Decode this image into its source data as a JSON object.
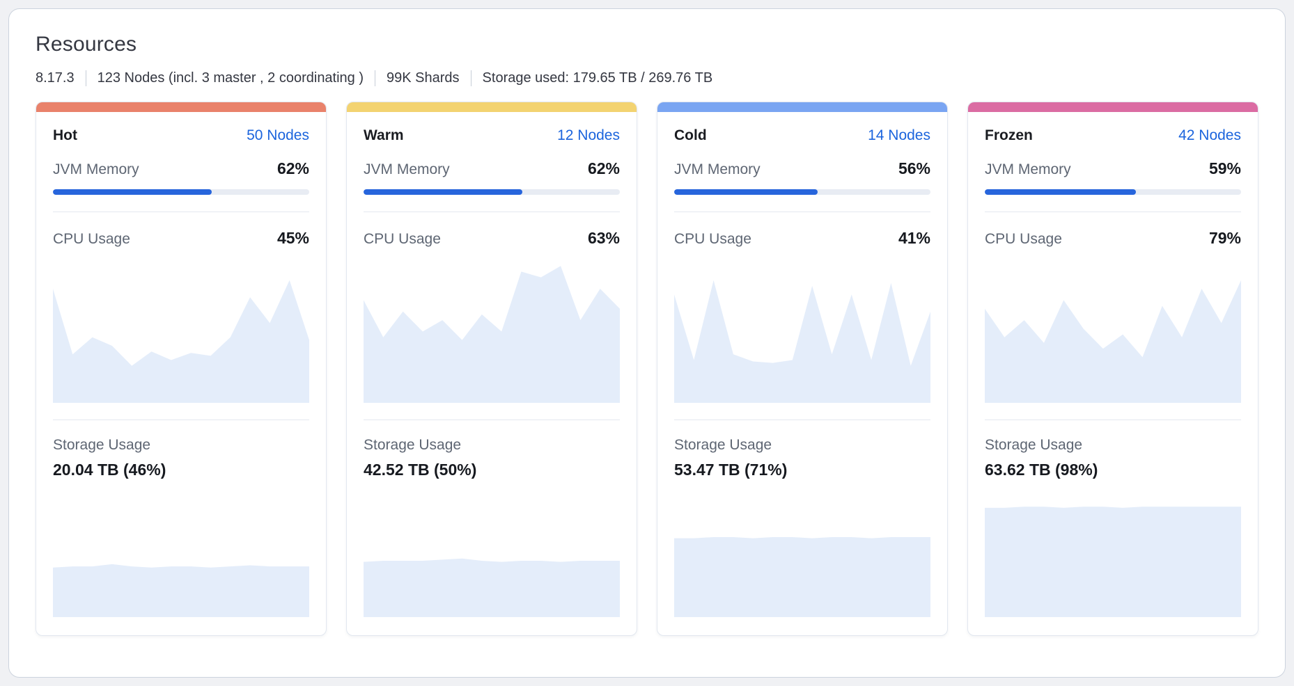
{
  "panel": {
    "title": "Resources",
    "meta": [
      "8.17.3",
      "123 Nodes (incl. 3 master , 2 coordinating )",
      "99K Shards",
      "Storage used: 179.65 TB / 269.76 TB"
    ]
  },
  "labels": {
    "jvm_memory": "JVM Memory",
    "cpu_usage": "CPU Usage",
    "storage_usage": "Storage Usage"
  },
  "colors": {
    "link_blue": "#1b64dd",
    "progress_fill": "#2765dc",
    "chart_fill": "#e4edfa",
    "hot_accent": "#e9826b",
    "warm_accent": "#f3d371",
    "cold_accent": "#7aa5f2",
    "frozen_accent": "#db6ca3"
  },
  "tiers": [
    {
      "name": "Hot",
      "nodes": "50 Nodes",
      "accent": "#e9826b",
      "jvm_memory": "62%",
      "jvm_value": 62,
      "cpu_usage": "45%",
      "storage_usage": "20.04 TB (46%)",
      "cpu_series": [
        80,
        34,
        46,
        40,
        26,
        36,
        30,
        35,
        33,
        46,
        74,
        56,
        86,
        44
      ],
      "storage_series": [
        44,
        45,
        45,
        47,
        45,
        44,
        45,
        45,
        44,
        45,
        46,
        45,
        45,
        45
      ]
    },
    {
      "name": "Warm",
      "nodes": "12 Nodes",
      "accent": "#f3d371",
      "jvm_memory": "62%",
      "jvm_value": 62,
      "cpu_usage": "63%",
      "storage_usage": "42.52 TB (50%)",
      "cpu_series": [
        72,
        46,
        64,
        50,
        58,
        44,
        62,
        50,
        92,
        88,
        96,
        58,
        80,
        66
      ],
      "storage_series": [
        49,
        50,
        50,
        50,
        51,
        52,
        50,
        49,
        50,
        50,
        49,
        50,
        50,
        50
      ]
    },
    {
      "name": "Cold",
      "nodes": "14 Nodes",
      "accent": "#7aa5f2",
      "jvm_memory": "56%",
      "jvm_value": 56,
      "cpu_usage": "41%",
      "storage_usage": "53.47 TB (71%)",
      "cpu_series": [
        76,
        30,
        86,
        34,
        29,
        28,
        30,
        82,
        34,
        76,
        30,
        84,
        26,
        64
      ],
      "storage_series": [
        70,
        70,
        71,
        71,
        70,
        71,
        71,
        70,
        71,
        71,
        70,
        71,
        71,
        71
      ]
    },
    {
      "name": "Frozen",
      "nodes": "42 Nodes",
      "accent": "#db6ca3",
      "jvm_memory": "59%",
      "jvm_value": 59,
      "cpu_usage": "79%",
      "storage_usage": "63.62 TB (98%)",
      "cpu_series": [
        66,
        46,
        58,
        42,
        72,
        52,
        38,
        48,
        32,
        68,
        46,
        80,
        56,
        86
      ],
      "storage_series": [
        97,
        97,
        98,
        98,
        97,
        98,
        98,
        97,
        98,
        98,
        98,
        98,
        98,
        98
      ]
    }
  ]
}
